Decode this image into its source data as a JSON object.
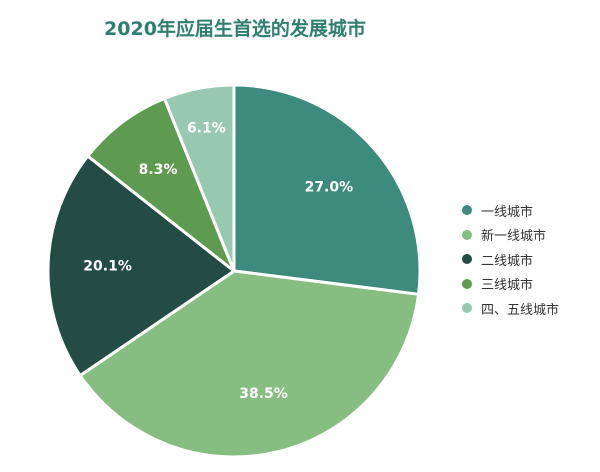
{
  "chart_data": {
    "type": "pie",
    "title": "2020年应届生首选的发展城市",
    "categories": [
      "一线城市",
      "新一线城市",
      "二线城市",
      "三线城市",
      "四、五线城市"
    ],
    "values": [
      27.0,
      38.5,
      20.1,
      8.3,
      6.1
    ],
    "value_labels": [
      "27.0%",
      "38.5%",
      "20.1%",
      "8.3%",
      "6.1%"
    ],
    "colors": [
      "#3c8b7c",
      "#86bd80",
      "#234c45",
      "#5e9a50",
      "#98c9b0"
    ],
    "label_colors": [
      "#ffffff",
      "#ffffff",
      "#ffffff",
      "#ffffff",
      "#ffffff"
    ],
    "start_angle_deg": 0,
    "direction": "clockwise",
    "legend_position": "right"
  }
}
